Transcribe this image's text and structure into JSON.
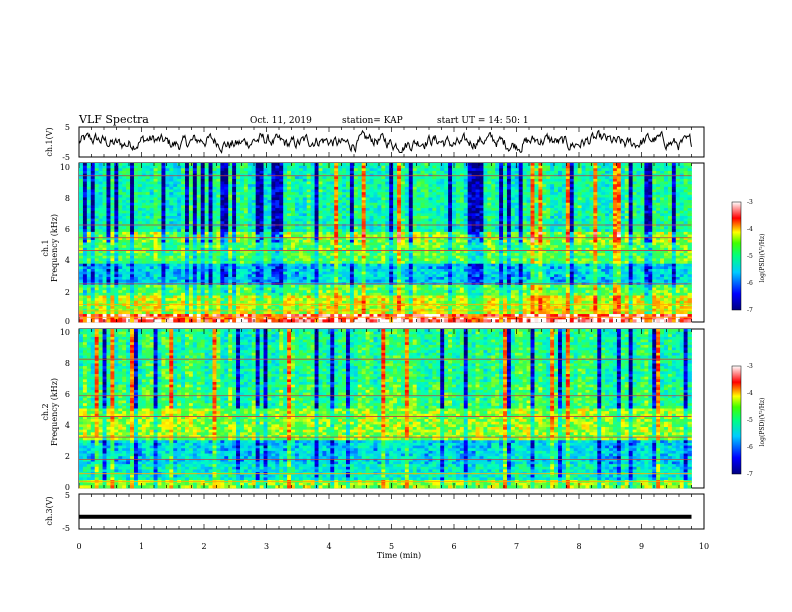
{
  "header": {
    "title": "VLF Spectra",
    "date": "Oct. 11, 2019",
    "station": "station= KAP",
    "start": "start  UT =   14: 50: 1"
  },
  "chart_data": [
    {
      "type": "line",
      "name": "ch1_waveform",
      "ylabel": "ch.1(V)",
      "ylim": [
        -5,
        5
      ],
      "yticks": [
        "5",
        "-5"
      ],
      "xlim": [
        0,
        10
      ]
    },
    {
      "type": "heatmap",
      "name": "ch1_spectrogram",
      "ylabel_1": "ch.1",
      "ylabel_2": "Frequency  (kHz)",
      "ylim": [
        0,
        10
      ],
      "yticks": [
        "0",
        "2",
        "4",
        "6",
        "8",
        "10"
      ],
      "xlim": [
        0,
        9.8
      ],
      "colorbar": {
        "label": "log(PSD)(V²/Hz)",
        "range": [
          -7,
          -3
        ],
        "ticks": [
          "-3",
          "-4",
          "-5",
          "-6",
          "-7"
        ]
      }
    },
    {
      "type": "heatmap",
      "name": "ch2_spectrogram",
      "ylabel_1": "ch.2",
      "ylabel_2": "Frequency  (kHz)",
      "ylim": [
        0,
        10
      ],
      "yticks": [
        "0",
        "2",
        "4",
        "6",
        "8",
        "10"
      ],
      "xlim": [
        0,
        9.8
      ],
      "colorbar": {
        "label": "log(PSD)(V²/Hz)",
        "range": [
          -7,
          -3
        ],
        "ticks": [
          "-3",
          "-4",
          "-5",
          "-6",
          "-7"
        ]
      }
    },
    {
      "type": "line",
      "name": "ch3_waveform",
      "ylabel": "ch.3(V)",
      "ylim": [
        -5,
        5
      ],
      "yticks": [
        "5",
        "-5"
      ],
      "y_constant": -1.5,
      "xlim": [
        0,
        10
      ]
    }
  ],
  "xaxis": {
    "label": "Time  (min)",
    "ticks": [
      "0",
      "1",
      "2",
      "3",
      "4",
      "5",
      "6",
      "7",
      "8",
      "9",
      "10"
    ]
  },
  "colors": {
    "waveform": "#000000",
    "colormap": [
      "#00007f",
      "#0000ff",
      "#00bfff",
      "#00ffbf",
      "#40ff40",
      "#ffff00",
      "#ff8000",
      "#ff0000",
      "#ffffff"
    ]
  }
}
